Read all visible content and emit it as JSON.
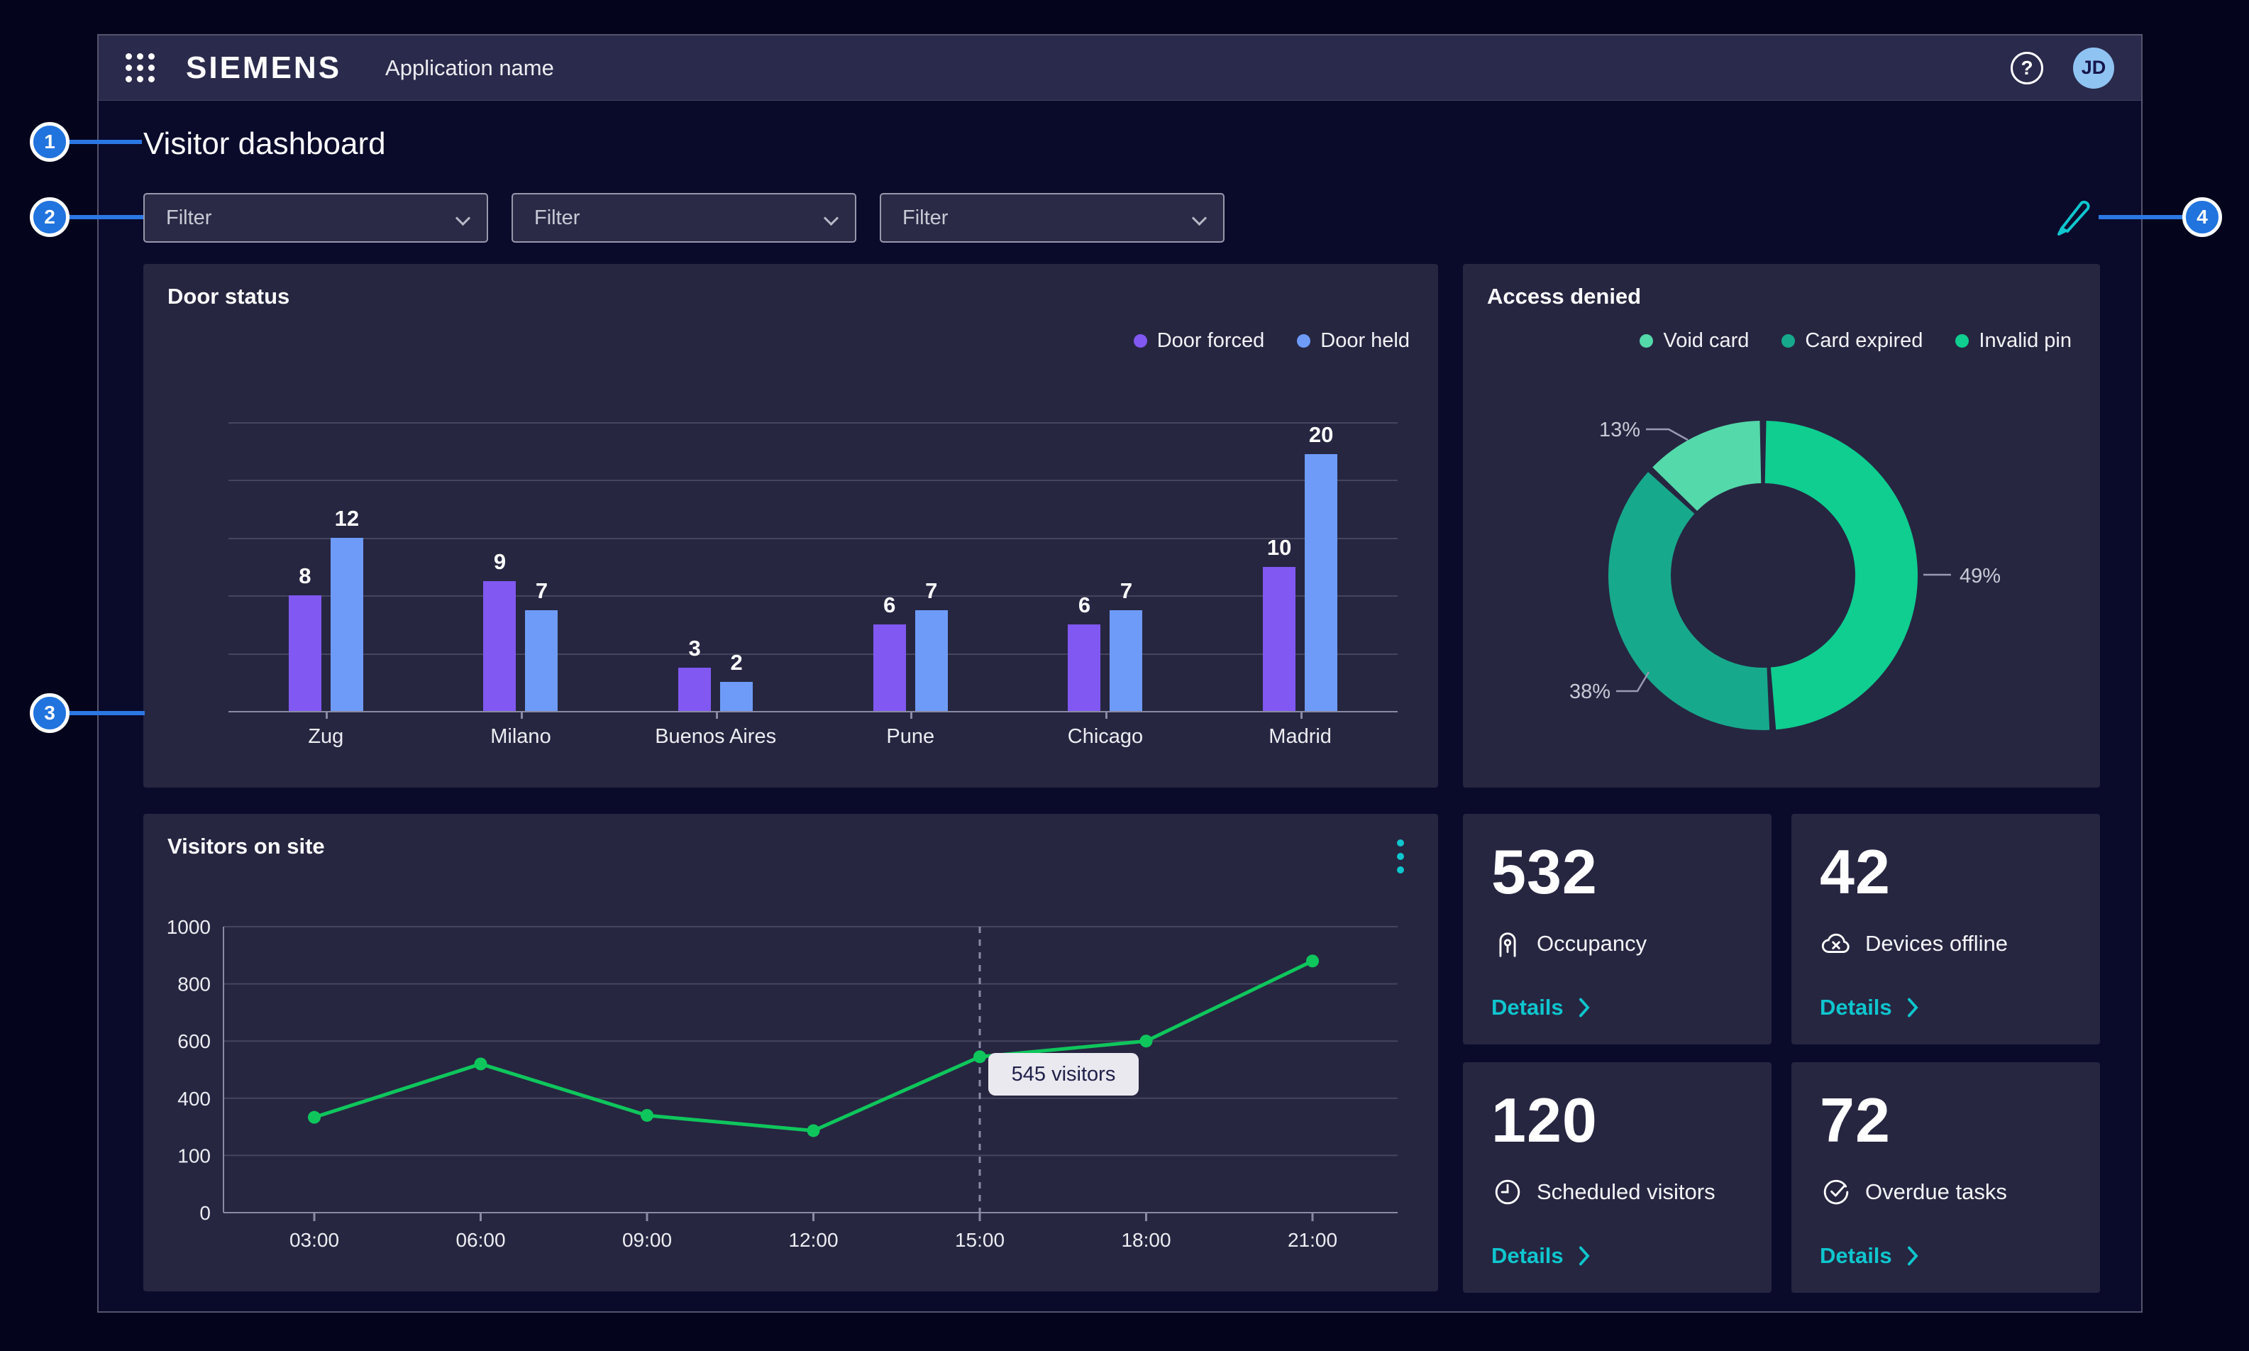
{
  "topbar": {
    "brand": "SIEMENS",
    "app_name": "Application name",
    "avatar_initials": "JD"
  },
  "title": "Visitor dashboard",
  "filters": [
    {
      "label": "Filter"
    },
    {
      "label": "Filter"
    },
    {
      "label": "Filter"
    }
  ],
  "annotations": {
    "badges": [
      "1",
      "2",
      "3",
      "4"
    ]
  },
  "cards": {
    "door_status": {
      "title": "Door status"
    },
    "access_denied": {
      "title": "Access denied"
    },
    "visitors": {
      "title": "Visitors on site",
      "tooltip": "545 visitors"
    }
  },
  "kpis": [
    {
      "value": "532",
      "label": "Occupancy",
      "link": "Details"
    },
    {
      "value": "42",
      "label": "Devices offline",
      "link": "Details"
    },
    {
      "value": "120",
      "label": "Scheduled visitors",
      "link": "Details"
    },
    {
      "value": "72",
      "label": "Overdue tasks",
      "link": "Details"
    }
  ],
  "colors": {
    "accent_cyan": "#0FC6CE",
    "badge_blue": "#2173DE",
    "line_green": "#0FC65C",
    "door_forced": "#8158F2",
    "door_held": "#6E9BF8",
    "invalid_pin": "#0FCE90",
    "card_expired": "#17A98C",
    "void_card": "#54D9AA"
  },
  "chart_data": [
    {
      "id": "door_status",
      "type": "bar",
      "title": "Door status",
      "categories": [
        "Zug",
        "Milano",
        "Buenos Aires",
        "Pune",
        "Chicago",
        "Madrid"
      ],
      "series": [
        {
          "name": "Door forced",
          "color": "#8158F2",
          "values": [
            8,
            9,
            3,
            6,
            6,
            10
          ]
        },
        {
          "name": "Door held",
          "color": "#6E9BF8",
          "values": [
            12,
            7,
            2,
            7,
            7,
            20
          ]
        }
      ],
      "ylim": [
        0,
        20
      ],
      "grid": true,
      "legend_position": "top-right"
    },
    {
      "id": "access_denied",
      "type": "pie",
      "title": "Access denied",
      "donut": true,
      "legend": [
        "Void card",
        "Card expired",
        "Invalid pin"
      ],
      "slices": [
        {
          "label": "Invalid pin",
          "value": 49,
          "color": "#0FCE90"
        },
        {
          "label": "Card expired",
          "value": 38,
          "color": "#17A98C"
        },
        {
          "label": "Void card",
          "value": 13,
          "color": "#54D9AA"
        }
      ],
      "start_angle": "top",
      "direction": "clockwise"
    },
    {
      "id": "visitors_on_site",
      "type": "line",
      "title": "Visitors on site",
      "x": [
        "03:00",
        "06:00",
        "09:00",
        "12:00",
        "15:00",
        "18:00",
        "21:00"
      ],
      "values": [
        300,
        520,
        310,
        230,
        545,
        600,
        880
      ],
      "y_ticks": [
        0,
        100,
        400,
        600,
        800,
        1000
      ],
      "color": "#0FC65C",
      "grid": true,
      "highlight": {
        "x": "15:00",
        "label": "545 visitors"
      }
    }
  ]
}
